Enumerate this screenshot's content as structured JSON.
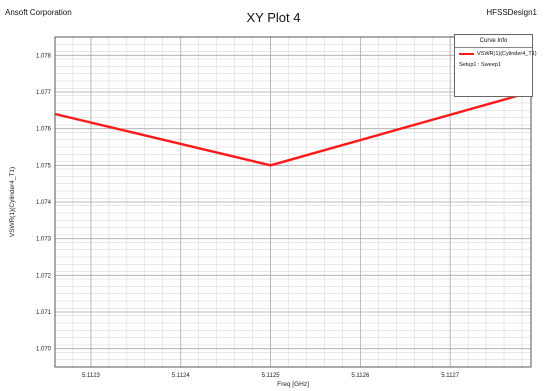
{
  "header": {
    "company": "Ansoft Corporation",
    "title": "XY Plot 4",
    "design": "HFSSDesign1"
  },
  "legend": {
    "heading": "Curve Info",
    "setup": "Setup1 : Sweep1"
  },
  "colors": {
    "series": "#ff1a1a",
    "grid": "#d2d2d2",
    "frame": "#555555"
  },
  "chart_data": {
    "type": "line",
    "title": "XY Plot 4",
    "xlabel": "Freq [GHz]",
    "ylabel": "VSWR(1)(Cylinder4_T1)",
    "xlim": [
      5.11226,
      5.11279
    ],
    "ylim": [
      1.0695,
      1.0785
    ],
    "x_ticks": [
      "5.1123",
      "5.1124",
      "5.1125",
      "5.1126",
      "5.1127"
    ],
    "x_tick_values": [
      5.1123,
      5.1124,
      5.1125,
      5.1126,
      5.1127
    ],
    "y_ticks": [
      "1.070",
      "1.071",
      "1.072",
      "1.073",
      "1.074",
      "1.075",
      "1.076",
      "1.077",
      "1.078"
    ],
    "y_tick_values": [
      1.07,
      1.071,
      1.072,
      1.073,
      1.074,
      1.075,
      1.076,
      1.077,
      1.078
    ],
    "grid": true,
    "legend_position": "top-right",
    "series": [
      {
        "name": "VSWR(1)(Cylinder4_T1)",
        "x": [
          5.11226,
          5.1125,
          5.11279
        ],
        "y": [
          1.0764,
          1.075,
          1.077
        ]
      }
    ]
  }
}
